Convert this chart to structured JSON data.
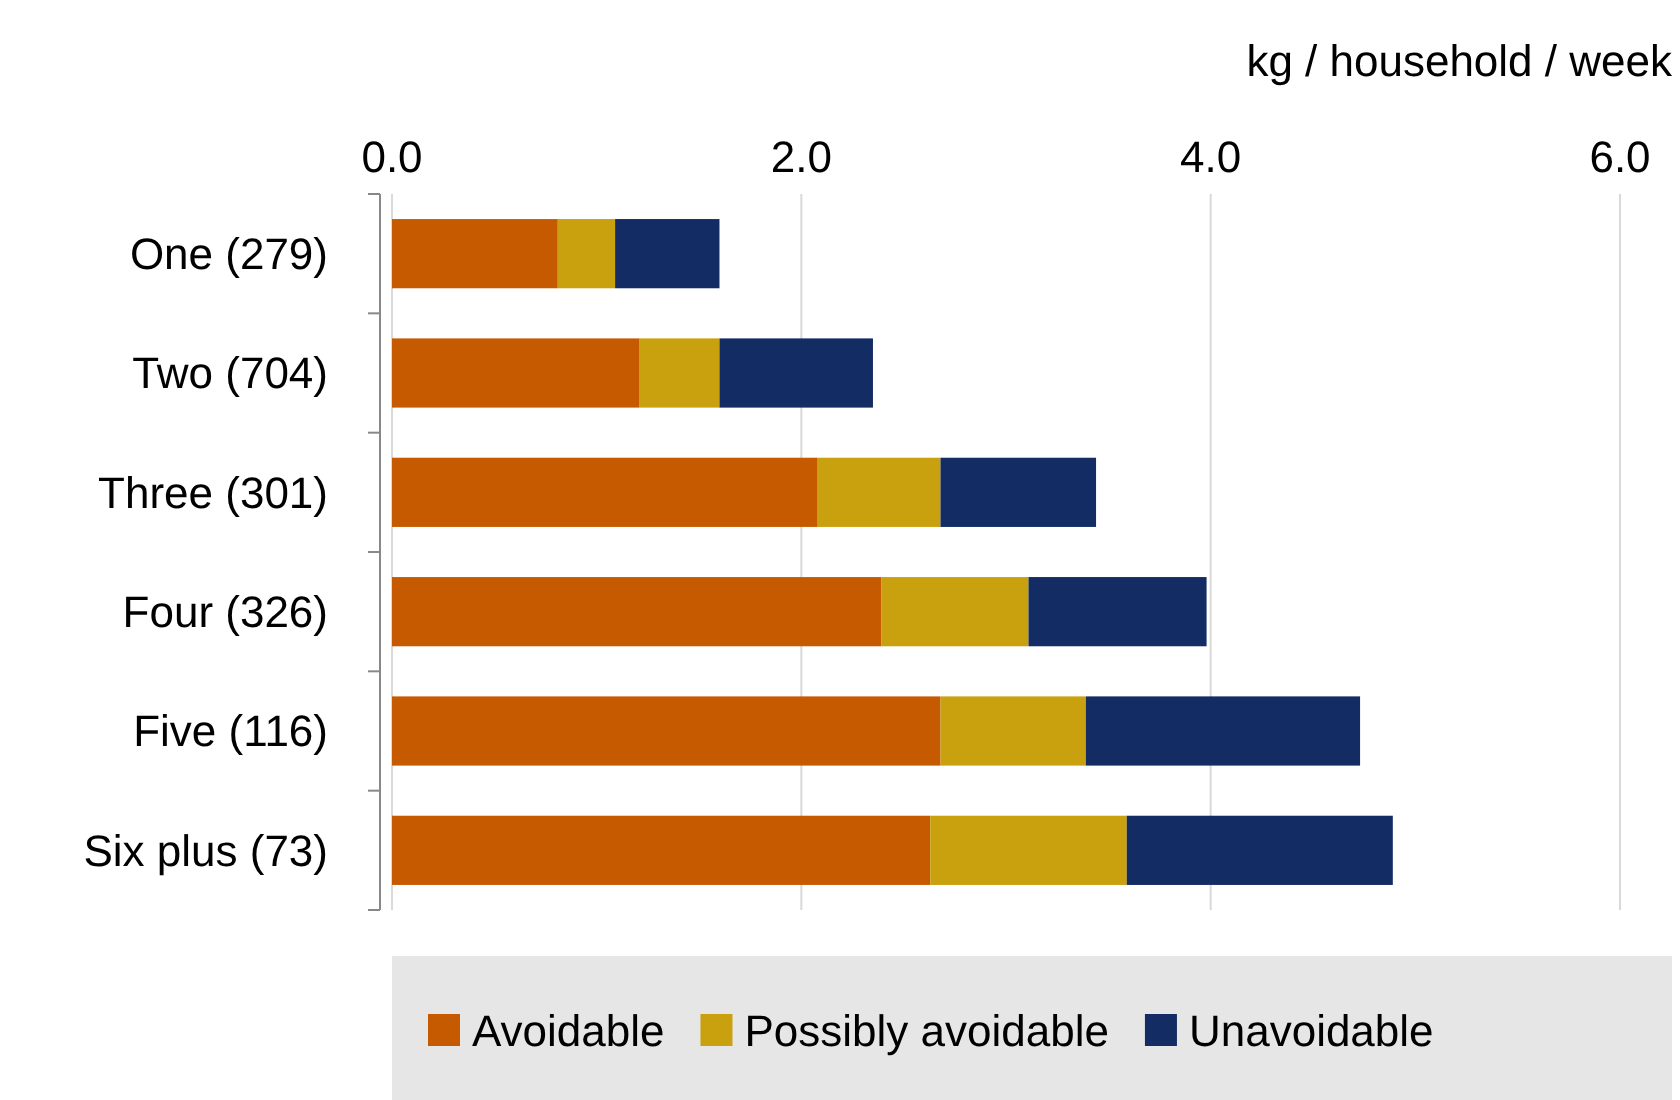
{
  "chart_data": {
    "type": "bar",
    "orientation": "horizontal",
    "stacked": true,
    "xlabel": "kg / household / week",
    "categories": [
      "One (279)",
      "Two (704)",
      "Three (301)",
      "Four (326)",
      "Five (116)",
      "Six plus (73)"
    ],
    "series": [
      {
        "name": "Avoidable",
        "color": "#c55a00",
        "values": [
          0.81,
          1.21,
          2.08,
          2.39,
          2.68,
          2.63
        ]
      },
      {
        "name": "Possibly avoidable",
        "color": "#c9a00e",
        "values": [
          0.28,
          0.39,
          0.6,
          0.72,
          0.71,
          0.96
        ]
      },
      {
        "name": "Unavoidable",
        "color": "#132c63",
        "values": [
          0.51,
          0.75,
          0.76,
          0.87,
          1.34,
          1.3
        ]
      }
    ],
    "xlim": [
      0,
      6
    ],
    "xticks": [
      {
        "value": 0,
        "label": "0.0"
      },
      {
        "value": 2,
        "label": "2.0"
      },
      {
        "value": 4,
        "label": "4.0"
      },
      {
        "value": 6,
        "label": "6.0"
      }
    ],
    "grid": "x",
    "legend": "bottom"
  }
}
